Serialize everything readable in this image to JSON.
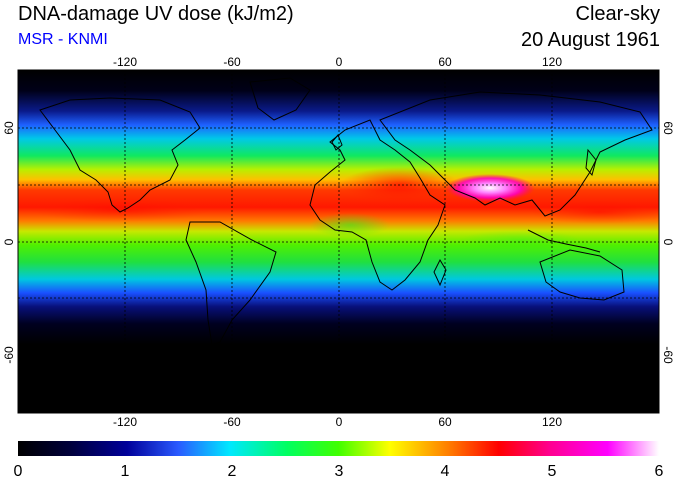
{
  "header": {
    "title": "DNA-damage UV dose (kJ/m2)",
    "subtitle": "MSR - KNMI",
    "subtitle_color": "#0000ff",
    "condition": "Clear-sky",
    "date": "20 August 1961"
  },
  "map": {
    "projection": "equirectangular",
    "lon_range": [
      -180,
      180
    ],
    "lat_range": [
      -90,
      90
    ],
    "lon_gridlines": [
      -120,
      -60,
      0,
      60,
      120
    ],
    "lat_gridlines": [
      -60,
      -30,
      0,
      30,
      60
    ],
    "lon_tick_labels": [
      "-120",
      "-60",
      "0",
      "60",
      "120"
    ],
    "lat_tick_labels": [
      "-60",
      "0",
      "60"
    ],
    "gridline_style": "dashed",
    "coastlines": true
  },
  "colorbar": {
    "labels": [
      "0",
      "1",
      "2",
      "3",
      "4",
      "5",
      "6"
    ],
    "range": [
      0,
      6
    ],
    "colors": [
      "#000000",
      "#00007a",
      "#1a4cff",
      "#00ffff",
      "#00ff00",
      "#ffff00",
      "#ff0000",
      "#ff00ff",
      "#ffffff"
    ]
  }
}
